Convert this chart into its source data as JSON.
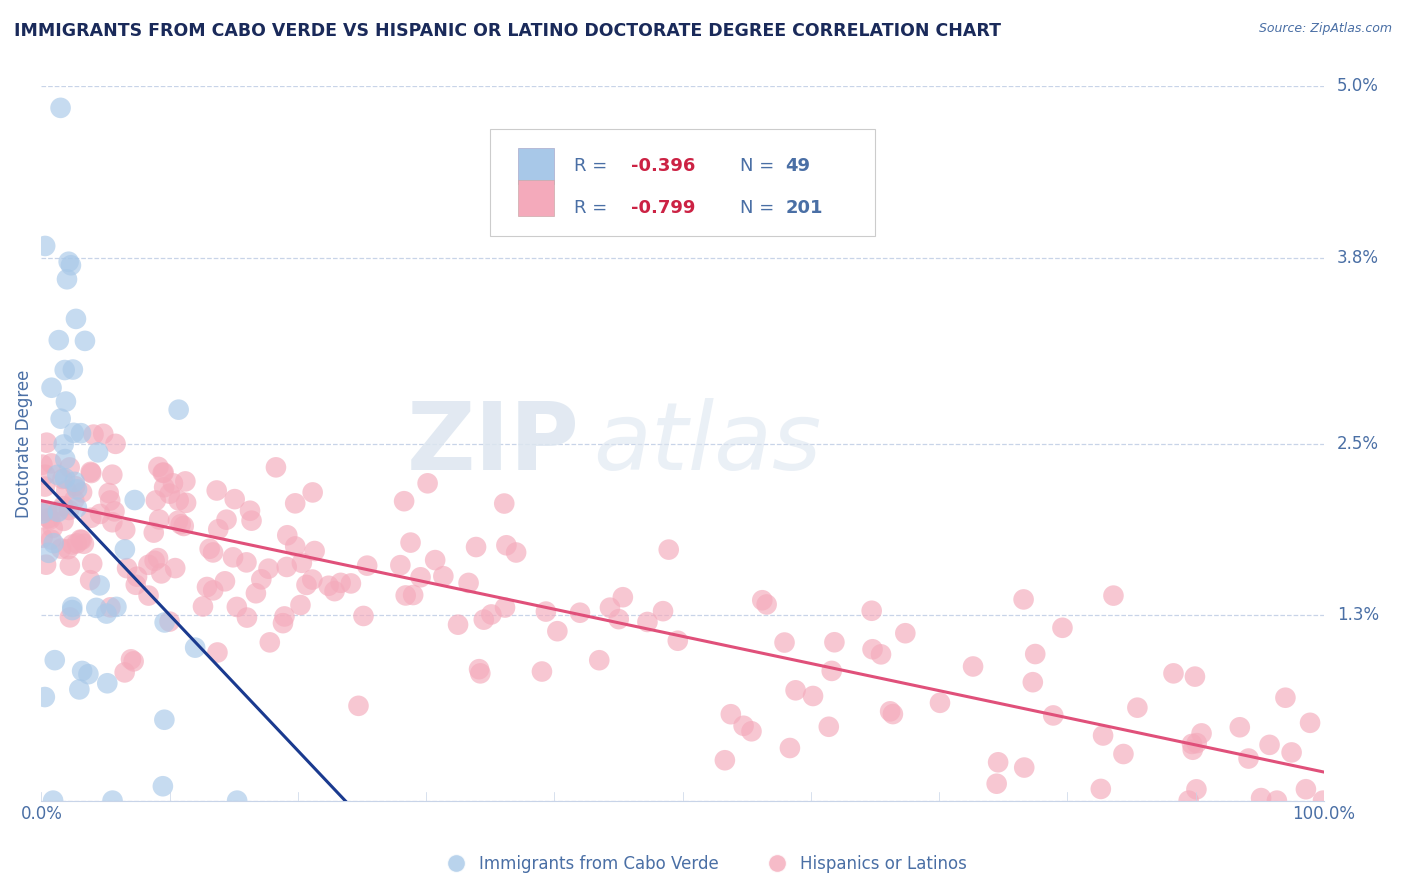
{
  "title": "IMMIGRANTS FROM CABO VERDE VS HISPANIC OR LATINO DOCTORATE DEGREE CORRELATION CHART",
  "source": "Source: ZipAtlas.com",
  "ylabel": "Doctorate Degree",
  "xlim": [
    0,
    100
  ],
  "ylim": [
    0,
    5.0
  ],
  "ytick_vals": [
    0,
    1.3,
    2.5,
    3.8,
    5.0
  ],
  "yticklabels": [
    "",
    "1.3%",
    "2.5%",
    "3.8%",
    "5.0%"
  ],
  "xticklabels": [
    "0.0%",
    "100.0%"
  ],
  "blue_R": -0.396,
  "blue_N": 49,
  "pink_R": -0.799,
  "pink_N": 201,
  "blue_color": "#a8c8e8",
  "pink_color": "#f4aabb",
  "blue_line_color": "#1a3a8f",
  "pink_line_color": "#e0507a",
  "legend_label_blue": "Immigrants from Cabo Verde",
  "legend_label_pink": "Hispanics or Latinos",
  "watermark_zip": "ZIP",
  "watermark_atlas": "atlas",
  "background_color": "#ffffff",
  "grid_color": "#c8d4e8",
  "title_color": "#1a2a5a",
  "axis_label_color": "#4a6fa5",
  "tick_color": "#4a6fa5",
  "legend_text_color": "#4a6fa5",
  "legend_r_color": "#cc2244",
  "blue_line_intercept": 2.25,
  "blue_line_slope": -0.095,
  "blue_line_xmax": 25,
  "pink_line_intercept": 2.1,
  "pink_line_slope": -0.019
}
